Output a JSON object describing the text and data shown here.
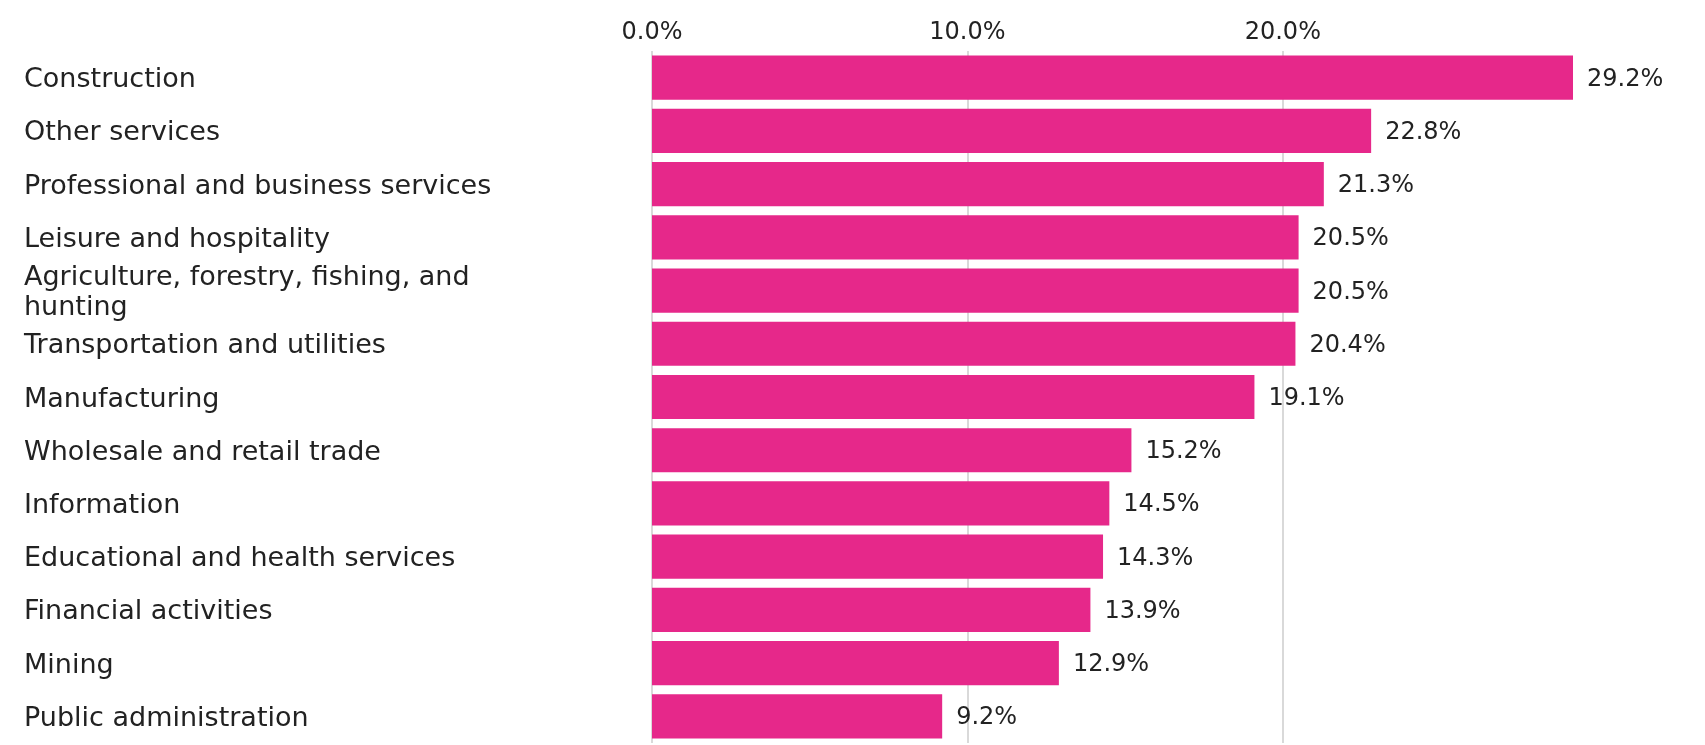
{
  "chart_data": {
    "type": "bar",
    "orientation": "horizontal",
    "categories": [
      "Construction",
      "Other services",
      "Professional and business services",
      "Leisure and hospitality",
      "Agriculture, forestry, fishing, and hunting",
      "Transportation and utilities",
      "Manufacturing",
      "Wholesale and retail trade",
      "Information",
      "Educational and health services",
      "Financial activities",
      "Mining",
      "Public administration"
    ],
    "values": [
      29.2,
      22.8,
      21.3,
      20.5,
      20.5,
      20.4,
      19.1,
      15.2,
      14.5,
      14.3,
      13.9,
      12.9,
      9.2
    ],
    "value_labels": [
      "29.2%",
      "22.8%",
      "21.3%",
      "20.5%",
      "20.5%",
      "20.4%",
      "19.1%",
      "15.2%",
      "14.5%",
      "14.3%",
      "13.9%",
      "12.9%",
      "9.2%"
    ],
    "color": "#e6288a",
    "xlim": [
      0,
      29.2
    ],
    "xticks": [
      {
        "value": 0,
        "label": "0.0%"
      },
      {
        "value": 10,
        "label": "10.0%"
      },
      {
        "value": 20,
        "label": "20.0%"
      }
    ],
    "grid": "x"
  }
}
